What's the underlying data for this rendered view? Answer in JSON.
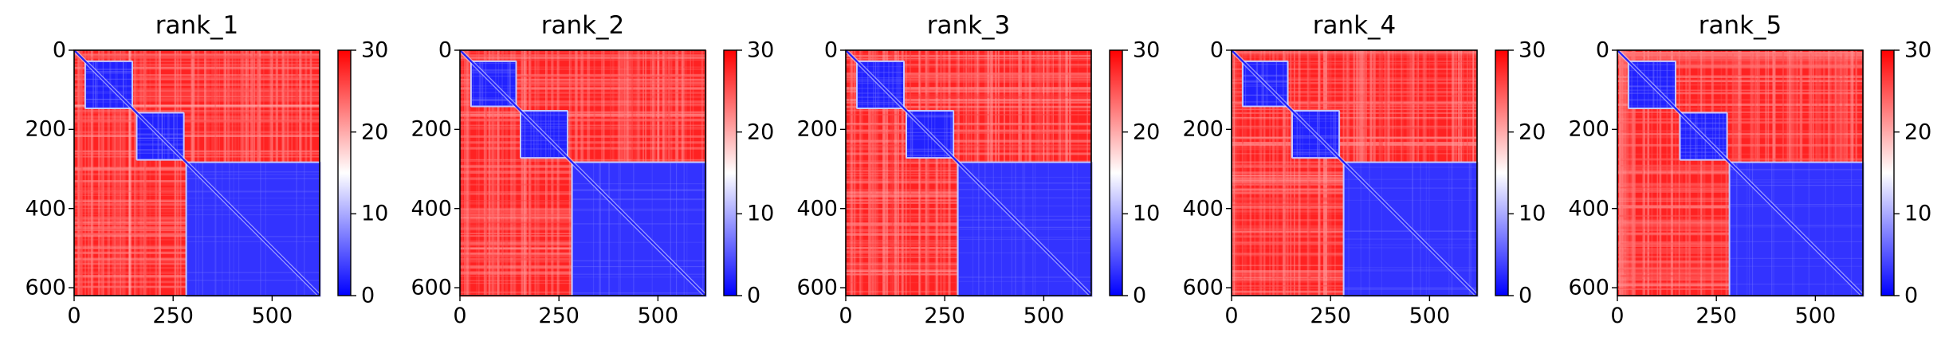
{
  "chart_data": [
    {
      "type": "heatmap",
      "title": "rank_1",
      "matrix_size": 620,
      "x_ticks": [
        "0",
        "250",
        "500"
      ],
      "y_ticks": [
        "0",
        "200",
        "400",
        "600"
      ],
      "x_tick_values": [
        0,
        250,
        500
      ],
      "y_tick_values": [
        0,
        200,
        400,
        600
      ],
      "colorbar": {
        "min": 0,
        "max": 30,
        "ticks": [
          "0",
          "10",
          "20",
          "30"
        ],
        "tick_values": [
          0,
          10,
          20,
          30
        ],
        "colormap": [
          "#0000ff",
          "#ffffff",
          "#ff0000"
        ]
      },
      "blocks": [
        {
          "start": 30,
          "end": 145,
          "value": 2
        },
        {
          "start": 160,
          "end": 275,
          "value": 2
        },
        {
          "start": 285,
          "end": 620,
          "value": 3
        }
      ],
      "background_value": 28
    },
    {
      "type": "heatmap",
      "title": "rank_2",
      "matrix_size": 620,
      "x_ticks": [
        "0",
        "250",
        "500"
      ],
      "y_ticks": [
        "0",
        "200",
        "400",
        "600"
      ],
      "x_tick_values": [
        0,
        250,
        500
      ],
      "y_tick_values": [
        0,
        200,
        400,
        600
      ],
      "colorbar": {
        "min": 0,
        "max": 30,
        "ticks": [
          "0",
          "10",
          "20",
          "30"
        ],
        "tick_values": [
          0,
          10,
          20,
          30
        ],
        "colormap": [
          "#0000ff",
          "#ffffff",
          "#ff0000"
        ]
      },
      "blocks": [
        {
          "start": 30,
          "end": 140,
          "value": 2
        },
        {
          "start": 155,
          "end": 270,
          "value": 2
        },
        {
          "start": 285,
          "end": 620,
          "value": 3
        }
      ],
      "background_value": 28
    },
    {
      "type": "heatmap",
      "title": "rank_3",
      "matrix_size": 620,
      "x_ticks": [
        "0",
        "250",
        "500"
      ],
      "y_ticks": [
        "0",
        "200",
        "400",
        "600"
      ],
      "x_tick_values": [
        0,
        250,
        500
      ],
      "y_tick_values": [
        0,
        200,
        400,
        600
      ],
      "colorbar": {
        "min": 0,
        "max": 30,
        "ticks": [
          "0",
          "10",
          "20",
          "30"
        ],
        "tick_values": [
          0,
          10,
          20,
          30
        ],
        "colormap": [
          "#0000ff",
          "#ffffff",
          "#ff0000"
        ]
      },
      "blocks": [
        {
          "start": 30,
          "end": 145,
          "value": 2
        },
        {
          "start": 155,
          "end": 270,
          "value": 2
        },
        {
          "start": 285,
          "end": 620,
          "value": 3
        }
      ],
      "background_value": 28
    },
    {
      "type": "heatmap",
      "title": "rank_4",
      "matrix_size": 620,
      "x_ticks": [
        "0",
        "250",
        "500"
      ],
      "y_ticks": [
        "0",
        "200",
        "400",
        "600"
      ],
      "x_tick_values": [
        0,
        250,
        500
      ],
      "y_tick_values": [
        0,
        200,
        400,
        600
      ],
      "colorbar": {
        "min": 0,
        "max": 30,
        "ticks": [
          "0",
          "10",
          "20",
          "30"
        ],
        "tick_values": [
          0,
          10,
          20,
          30
        ],
        "colormap": [
          "#0000ff",
          "#ffffff",
          "#ff0000"
        ]
      },
      "blocks": [
        {
          "start": 30,
          "end": 140,
          "value": 2
        },
        {
          "start": 155,
          "end": 270,
          "value": 2
        },
        {
          "start": 285,
          "end": 620,
          "value": 3
        }
      ],
      "background_value": 28
    },
    {
      "type": "heatmap",
      "title": "rank_5",
      "matrix_size": 620,
      "x_ticks": [
        "0",
        "250",
        "500"
      ],
      "y_ticks": [
        "0",
        "200",
        "400",
        "600"
      ],
      "x_tick_values": [
        0,
        250,
        500
      ],
      "y_tick_values": [
        0,
        200,
        400,
        600
      ],
      "colorbar": {
        "min": 0,
        "max": 30,
        "ticks": [
          "0",
          "10",
          "20",
          "30"
        ],
        "tick_values": [
          0,
          10,
          20,
          30
        ],
        "colormap": [
          "#0000ff",
          "#ffffff",
          "#ff0000"
        ]
      },
      "blocks": [
        {
          "start": 30,
          "end": 145,
          "value": 2
        },
        {
          "start": 160,
          "end": 275,
          "value": 2
        },
        {
          "start": 285,
          "end": 620,
          "value": 3
        }
      ],
      "background_value": 28
    }
  ]
}
